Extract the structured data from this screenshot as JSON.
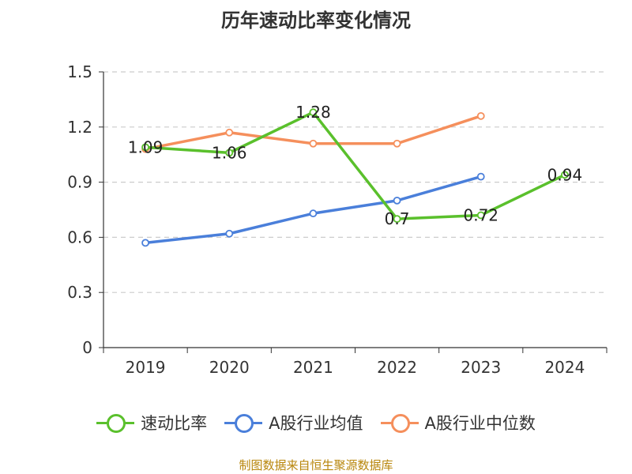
{
  "chart_data": {
    "type": "line",
    "title": "历年速动比率变化情况",
    "categories": [
      "2019",
      "2020",
      "2021",
      "2022",
      "2023",
      "2024"
    ],
    "ylim": [
      0,
      1.5
    ],
    "yticks": [
      "0",
      "0.3",
      "0.6",
      "0.9",
      "1.2",
      "1.5"
    ],
    "grid": true,
    "legend_position": "bottom",
    "series": [
      {
        "name": "速动比率",
        "color": "#5ac02c",
        "values": [
          1.09,
          1.06,
          1.28,
          0.7,
          0.72,
          0.94
        ],
        "labels": [
          "1.09",
          "1.06",
          "1.28",
          "0.7",
          "0.72",
          "0.94"
        ]
      },
      {
        "name": "A股行业均值",
        "color": "#4a7fda",
        "values": [
          0.57,
          0.62,
          0.73,
          0.8,
          0.93,
          null
        ]
      },
      {
        "name": "A股行业中位数",
        "color": "#f58f5c",
        "values": [
          1.08,
          1.17,
          1.11,
          1.11,
          1.26,
          null
        ]
      }
    ]
  },
  "source_note": "制图数据来自恒生聚源数据库"
}
